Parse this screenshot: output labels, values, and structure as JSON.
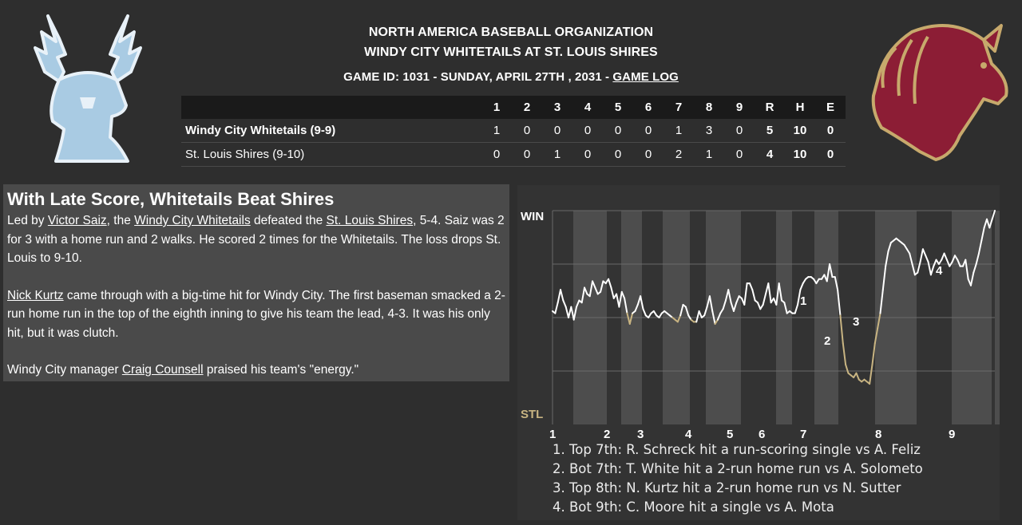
{
  "header": {
    "league": "NORTH AMERICA BASEBALL ORGANIZATION",
    "matchup": "WINDY CITY WHITETAILS AT ST. LOUIS SHIRES",
    "game_info": "GAME ID: 1031 - SUNDAY, APRIL 27TH , 2031 - ",
    "game_log_link": "GAME LOG"
  },
  "logos": {
    "away": "deer-logo",
    "home": "horse-logo"
  },
  "box_score": {
    "columns": [
      "1",
      "2",
      "3",
      "4",
      "5",
      "6",
      "7",
      "8",
      "9",
      "R",
      "H",
      "E"
    ],
    "rows": [
      {
        "team": "Windy City Whitetails (9-9)",
        "cells": [
          "1",
          "0",
          "0",
          "0",
          "0",
          "0",
          "1",
          "3",
          "0",
          "5",
          "10",
          "0"
        ]
      },
      {
        "team": "St. Louis Shires (9-10)",
        "cells": [
          "0",
          "0",
          "1",
          "0",
          "0",
          "0",
          "2",
          "1",
          "0",
          "4",
          "10",
          "0"
        ]
      }
    ]
  },
  "story": {
    "headline": "With Late Score, Whitetails Beat Shires",
    "p1_a": "Led by ",
    "p1_link1": "Victor Saiz",
    "p1_b": ", the ",
    "p1_link2": "Windy City Whitetails",
    "p1_c": " defeated the ",
    "p1_link3": "St. Louis Shires",
    "p1_d": ", 5-4. Saiz was 2 for 3 with a home run and 2 walks. He scored 2 times for the Whitetails. The loss drops St. Louis to 9-10.",
    "p2_link": "Nick Kurtz",
    "p2_rest": " came through with a big-time hit for Windy City. The first baseman smacked a 2-run home run in the top of the eighth inning to give his team the lead, 4-3. It was his only hit, but it was clutch.",
    "p3_a": "Windy City manager ",
    "p3_link": "Craig Counsell",
    "p3_b": " praised his team's \"energy.\""
  },
  "chart_data": {
    "type": "line",
    "top_label": "WIN",
    "bottom_label": "STL",
    "innings": [
      "1",
      "2",
      "3",
      "4",
      "5",
      "6",
      "7",
      "8",
      "9"
    ],
    "ylim": [
      0,
      100
    ],
    "grid": true,
    "colors": {
      "away": "#ffffff",
      "home": "#c8b482",
      "stripe": "#4d4d4d",
      "bg": "#333333",
      "stripe_alt": "#5a5a5a"
    },
    "series": [
      {
        "values": [
          [
            0,
            53
          ],
          [
            1,
            52
          ],
          [
            2,
            57
          ],
          [
            3,
            63
          ],
          [
            4,
            58
          ],
          [
            5,
            55
          ],
          [
            6,
            50
          ],
          [
            7,
            55
          ],
          [
            8,
            49
          ],
          [
            9,
            55
          ],
          [
            10,
            58
          ],
          [
            11,
            57
          ],
          [
            12,
            64
          ],
          [
            13,
            61
          ],
          [
            14,
            60
          ],
          [
            15,
            67
          ],
          [
            16,
            64
          ],
          [
            17,
            61
          ],
          [
            18,
            62
          ],
          [
            19,
            67
          ],
          [
            20,
            66
          ],
          [
            21,
            68
          ],
          [
            22,
            64
          ],
          [
            23,
            59
          ],
          [
            24,
            61
          ],
          [
            25,
            55
          ],
          [
            26,
            62
          ],
          [
            27,
            59
          ],
          [
            28,
            52
          ],
          [
            29,
            47
          ],
          [
            30,
            52
          ],
          [
            31,
            53
          ],
          [
            32,
            56
          ],
          [
            33,
            60
          ],
          [
            34,
            54
          ],
          [
            35,
            51
          ],
          [
            36,
            50
          ],
          [
            37,
            52
          ],
          [
            38,
            53
          ],
          [
            39,
            51
          ],
          [
            40,
            50
          ],
          [
            41,
            52
          ],
          [
            42,
            53
          ],
          [
            43,
            52
          ],
          [
            44,
            51
          ],
          [
            45,
            50
          ],
          [
            46,
            49
          ],
          [
            47,
            48
          ],
          [
            48,
            51
          ],
          [
            49,
            56
          ],
          [
            50,
            55
          ],
          [
            51,
            51
          ],
          [
            52,
            49
          ],
          [
            53,
            48
          ],
          [
            54,
            48
          ],
          [
            55,
            53
          ],
          [
            56,
            50
          ],
          [
            57,
            51
          ],
          [
            58,
            55
          ],
          [
            59,
            60
          ],
          [
            60,
            53
          ],
          [
            61,
            47
          ],
          [
            62,
            49
          ],
          [
            63,
            52
          ],
          [
            64,
            54
          ],
          [
            65,
            58
          ],
          [
            66,
            63
          ],
          [
            67,
            57
          ],
          [
            68,
            53
          ],
          [
            69,
            57
          ],
          [
            70,
            60
          ],
          [
            71,
            59
          ],
          [
            72,
            56
          ],
          [
            73,
            66
          ],
          [
            74,
            66
          ],
          [
            75,
            63
          ],
          [
            76,
            58
          ],
          [
            77,
            57
          ],
          [
            78,
            54
          ],
          [
            79,
            56
          ],
          [
            80,
            61
          ],
          [
            81,
            66
          ],
          [
            82,
            57
          ],
          [
            83,
            59
          ],
          [
            84,
            56
          ],
          [
            85,
            66
          ],
          [
            86,
            58
          ],
          [
            87,
            57
          ],
          [
            88,
            52
          ],
          [
            89,
            53
          ],
          [
            90,
            52
          ],
          [
            91,
            52
          ],
          [
            92,
            56
          ],
          [
            93,
            63
          ],
          [
            94,
            66
          ],
          [
            95,
            68
          ],
          [
            96,
            69
          ],
          [
            97,
            69
          ],
          [
            98,
            68
          ],
          [
            99,
            66
          ],
          [
            100,
            68
          ],
          [
            101,
            68
          ],
          [
            102,
            70
          ],
          [
            103,
            67
          ],
          [
            104,
            75
          ],
          [
            105,
            69
          ],
          [
            106,
            69
          ],
          [
            107,
            63
          ],
          [
            108,
            51
          ],
          [
            109,
            38
          ],
          [
            110,
            28
          ],
          [
            111,
            24
          ],
          [
            112,
            23
          ],
          [
            113,
            22
          ],
          [
            114,
            24
          ],
          [
            115,
            21
          ],
          [
            116,
            20
          ],
          [
            117,
            21
          ],
          [
            118,
            20
          ],
          [
            119,
            19
          ],
          [
            120,
            28
          ],
          [
            121,
            38
          ],
          [
            122,
            45
          ],
          [
            123,
            52
          ],
          [
            124,
            63
          ],
          [
            125,
            74
          ],
          [
            126,
            81
          ],
          [
            127,
            85
          ],
          [
            128,
            86
          ],
          [
            129,
            87
          ],
          [
            130,
            86
          ],
          [
            131,
            85
          ],
          [
            132,
            84
          ],
          [
            133,
            82
          ],
          [
            134,
            80
          ],
          [
            135,
            75
          ],
          [
            136,
            70
          ],
          [
            137,
            71
          ],
          [
            138,
            76
          ],
          [
            139,
            82
          ],
          [
            140,
            79
          ],
          [
            141,
            76
          ],
          [
            142,
            70
          ],
          [
            143,
            74
          ],
          [
            144,
            77
          ],
          [
            145,
            75
          ],
          [
            146,
            77
          ],
          [
            147,
            80
          ],
          [
            148,
            77
          ],
          [
            149,
            74
          ],
          [
            150,
            76
          ],
          [
            151,
            79
          ],
          [
            152,
            77
          ],
          [
            153,
            74
          ],
          [
            154,
            74
          ],
          [
            155,
            77
          ],
          [
            156,
            68
          ],
          [
            157,
            65
          ],
          [
            158,
            71
          ],
          [
            159,
            75
          ],
          [
            160,
            80
          ],
          [
            161,
            86
          ],
          [
            162,
            92
          ],
          [
            163,
            96
          ],
          [
            164,
            92
          ],
          [
            165,
            96
          ],
          [
            166,
            100
          ]
        ]
      }
    ],
    "annotations": [
      "1",
      "2",
      "3",
      "4"
    ],
    "notes": [
      "1. Top 7th: R. Schreck hit a run-scoring single vs A. Feliz",
      "2. Bot 7th: T. White hit a 2-run home run vs A. Solometo",
      "3. Top 8th: N. Kurtz hit a 2-run home run vs N. Sutter",
      "4. Bot 9th: C. Moore hit a single vs A. Mota"
    ]
  }
}
